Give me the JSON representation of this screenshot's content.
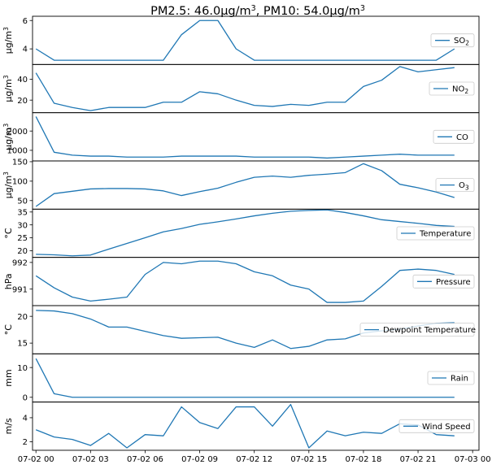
{
  "figure": {
    "title_prefix1": "PM2.5: 46.0",
    "title_unit1": "μg/m",
    "title_sup1": "3",
    "title_prefix2": ", PM10: 54.0",
    "title_unit2": "μg/m",
    "title_sup2": "3"
  },
  "colors": {
    "line": "#1f77b4",
    "axis": "#000000",
    "legend_border": "#cccccc"
  },
  "x_axis": {
    "ticks": [
      "07-02 00",
      "07-02 03",
      "07-02 06",
      "07-02 09",
      "07-02 12",
      "07-02 15",
      "07-02 18",
      "07-02 21",
      "07-03 00"
    ]
  },
  "chart_data": [
    {
      "type": "line",
      "legend": "SO",
      "legend_sub": "2",
      "ylabel": "μg/m",
      "ylabel_sup": "3",
      "ylim": [
        2.9,
        6.3
      ],
      "yticks": [
        4,
        6
      ],
      "ytick_labels": [
        "4",
        "6"
      ],
      "x_hours": [
        0,
        1,
        2,
        3,
        4,
        5,
        6,
        7,
        8,
        9,
        10,
        11,
        12,
        13,
        14,
        15,
        16,
        17,
        18,
        19,
        20,
        21,
        22,
        23
      ],
      "values": [
        4,
        3.2,
        3.2,
        3.2,
        3.2,
        3.2,
        3.2,
        3.2,
        5,
        6,
        6,
        4,
        3.2,
        3.2,
        3.2,
        3.2,
        3.2,
        3.2,
        3.2,
        3.2,
        3.2,
        3.2,
        3.2,
        4
      ]
    },
    {
      "type": "line",
      "legend": "NO",
      "legend_sub": "2",
      "ylabel": "μg/m",
      "ylabel_sup": "3",
      "ylim": [
        8,
        54
      ],
      "yticks": [
        20,
        40
      ],
      "ytick_labels": [
        "20",
        "40"
      ],
      "x_hours": [
        0,
        1,
        2,
        3,
        4,
        5,
        6,
        7,
        8,
        9,
        10,
        11,
        12,
        13,
        14,
        15,
        16,
        17,
        18,
        19,
        20,
        21,
        22,
        23
      ],
      "values": [
        46,
        17,
        13,
        10,
        13,
        13,
        13,
        18,
        18,
        28,
        26,
        20,
        15,
        14,
        16,
        15,
        18,
        18,
        33,
        39,
        52,
        47,
        49,
        51
      ]
    },
    {
      "type": "line",
      "legend": "CO",
      "ylabel": "μg/m",
      "ylabel_sup": "3",
      "ylim": [
        450,
        2950
      ],
      "yticks": [
        1000,
        2000
      ],
      "ytick_labels": [
        "1000",
        "2000"
      ],
      "x_hours": [
        0,
        1,
        2,
        3,
        4,
        5,
        6,
        7,
        8,
        9,
        10,
        11,
        12,
        13,
        14,
        15,
        16,
        17,
        18,
        19,
        20,
        21,
        22,
        23
      ],
      "values": [
        2750,
        900,
        750,
        700,
        700,
        650,
        650,
        650,
        700,
        700,
        700,
        700,
        650,
        650,
        650,
        650,
        600,
        650,
        700,
        750,
        800,
        750,
        750,
        750
      ]
    },
    {
      "type": "line",
      "legend": "O",
      "legend_sub": "3",
      "ylabel": "μg/m",
      "ylabel_sup": "3",
      "ylim": [
        28,
        152
      ],
      "yticks": [
        50,
        100,
        150
      ],
      "ytick_labels": [
        "50",
        "100",
        "150"
      ],
      "x_hours": [
        0,
        1,
        2,
        3,
        4,
        5,
        6,
        7,
        8,
        9,
        10,
        11,
        12,
        13,
        14,
        15,
        16,
        17,
        18,
        19,
        20,
        21,
        22,
        23
      ],
      "values": [
        35,
        68,
        74,
        80,
        81,
        81,
        80,
        75,
        63,
        73,
        82,
        97,
        110,
        113,
        110,
        115,
        118,
        122,
        145,
        127,
        92,
        83,
        72,
        58
      ]
    },
    {
      "type": "line",
      "legend": "Temperature",
      "ylabel": "°C",
      "ylim": [
        17.4,
        36.1
      ],
      "yticks": [
        20,
        25,
        30,
        35
      ],
      "ytick_labels": [
        "20",
        "25",
        "30",
        "35"
      ],
      "x_hours": [
        0,
        1,
        2,
        3,
        4,
        5,
        6,
        7,
        8,
        9,
        10,
        11,
        12,
        13,
        14,
        15,
        16,
        17,
        18,
        19,
        20,
        21,
        22,
        23
      ],
      "values": [
        18.6,
        18.4,
        18,
        18.3,
        20.6,
        22.8,
        25,
        27.3,
        28.6,
        30.2,
        31.2,
        32.3,
        33.5,
        34.5,
        35.3,
        35.6,
        35.8,
        34.8,
        33.5,
        32,
        31.3,
        30.6,
        29.8,
        29.4
      ]
    },
    {
      "type": "line",
      "legend": "Pressure",
      "ylabel": "hPa",
      "ylim": [
        990.38,
        992.19
      ],
      "yticks": [
        991,
        992
      ],
      "ytick_labels": [
        "991",
        "992"
      ],
      "x_hours": [
        0,
        1,
        2,
        3,
        4,
        5,
        6,
        7,
        8,
        9,
        10,
        11,
        12,
        13,
        14,
        15,
        16,
        17,
        18,
        19,
        20,
        21,
        22,
        23
      ],
      "values": [
        991.5,
        991.05,
        990.7,
        990.55,
        990.62,
        990.7,
        991.55,
        992,
        991.95,
        992.05,
        992.05,
        991.95,
        991.65,
        991.5,
        991.15,
        991,
        990.5,
        990.5,
        990.55,
        991.1,
        991.7,
        991.75,
        991.7,
        991.55
      ]
    },
    {
      "type": "line",
      "legend": "Dewpoint Temperature",
      "ylabel": "°C",
      "ylim": [
        13,
        22
      ],
      "yticks": [
        15,
        20
      ],
      "ytick_labels": [
        "15",
        "20"
      ],
      "x_hours": [
        0,
        1,
        2,
        3,
        4,
        5,
        6,
        7,
        8,
        9,
        10,
        11,
        12,
        13,
        14,
        15,
        16,
        17,
        18,
        19,
        20,
        21,
        22,
        23
      ],
      "values": [
        21.1,
        21,
        20.5,
        19.5,
        18,
        18,
        17.2,
        16.4,
        15.9,
        16,
        16.1,
        15,
        14.2,
        15.6,
        14,
        14.4,
        15.6,
        15.8,
        16.9,
        17.3,
        17.6,
        18.2,
        18.7,
        18.8
      ]
    },
    {
      "type": "line",
      "legend": "Rain",
      "ylabel": "mm",
      "ylim": [
        -1.6,
        14.6
      ],
      "yticks": [
        0,
        10
      ],
      "ytick_labels": [
        "0",
        "10"
      ],
      "x_hours": [
        0,
        1,
        2,
        3,
        4,
        5,
        6,
        7,
        8,
        9,
        10,
        11,
        12,
        13,
        14,
        15,
        16,
        17,
        18,
        19,
        20,
        21,
        22,
        23
      ],
      "values": [
        13,
        1.2,
        0,
        0,
        0,
        0,
        0,
        0,
        0,
        0,
        0,
        0,
        0,
        0,
        0,
        0,
        0,
        0,
        0,
        0,
        0,
        0,
        0,
        0
      ]
    },
    {
      "type": "line",
      "legend": "Wind Speed",
      "ylabel": "m/s",
      "ylim": [
        1.3,
        5.3
      ],
      "yticks": [
        2,
        4
      ],
      "ytick_labels": [
        "2",
        "4"
      ],
      "x_hours": [
        0,
        1,
        2,
        3,
        4,
        5,
        6,
        7,
        8,
        9,
        10,
        11,
        12,
        13,
        14,
        15,
        16,
        17,
        18,
        19,
        20,
        21,
        22,
        23
      ],
      "values": [
        3,
        2.4,
        2.2,
        1.7,
        2.7,
        1.5,
        2.6,
        2.5,
        4.9,
        3.6,
        3.1,
        4.9,
        4.9,
        3.3,
        5.1,
        1.5,
        2.9,
        2.5,
        2.8,
        2.7,
        3.5,
        3.4,
        2.6,
        2.5
      ]
    }
  ]
}
